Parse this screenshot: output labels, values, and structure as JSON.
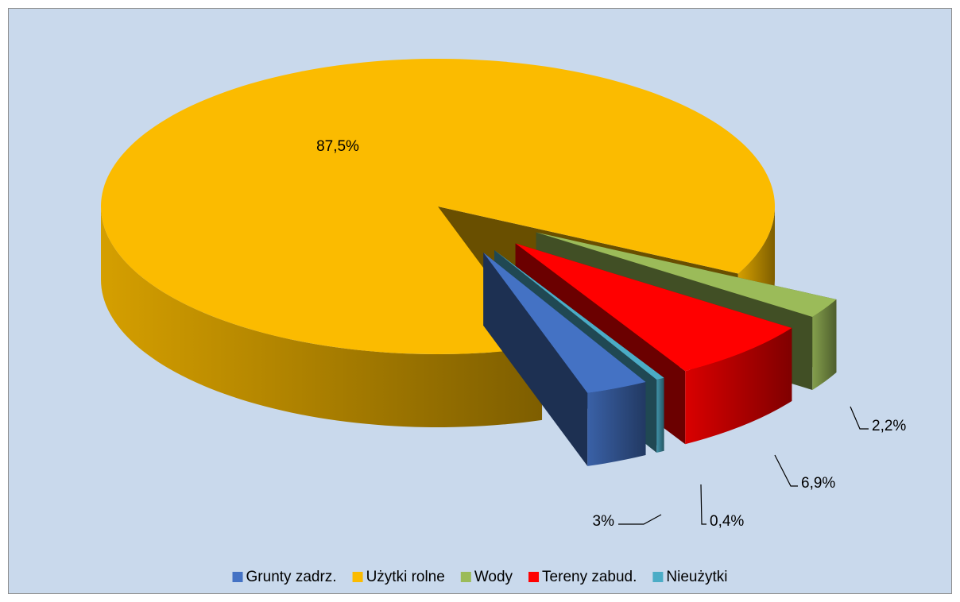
{
  "chart_data": {
    "type": "pie3d",
    "categories": [
      "Grunty zadrz.",
      "Użytki rolne",
      "Wody",
      "Tereny zabud.",
      "Nieużytki"
    ],
    "values": [
      3,
      87.5,
      2.2,
      6.9,
      0.4
    ],
    "value_labels": [
      "3%",
      "87,5%",
      "2,2%",
      "6,9%",
      "0,4%"
    ],
    "colors": [
      "#4472c4",
      "#fbbb00",
      "#9bbb59",
      "#ff0000",
      "#4bacc6"
    ],
    "legend": "bottom"
  }
}
